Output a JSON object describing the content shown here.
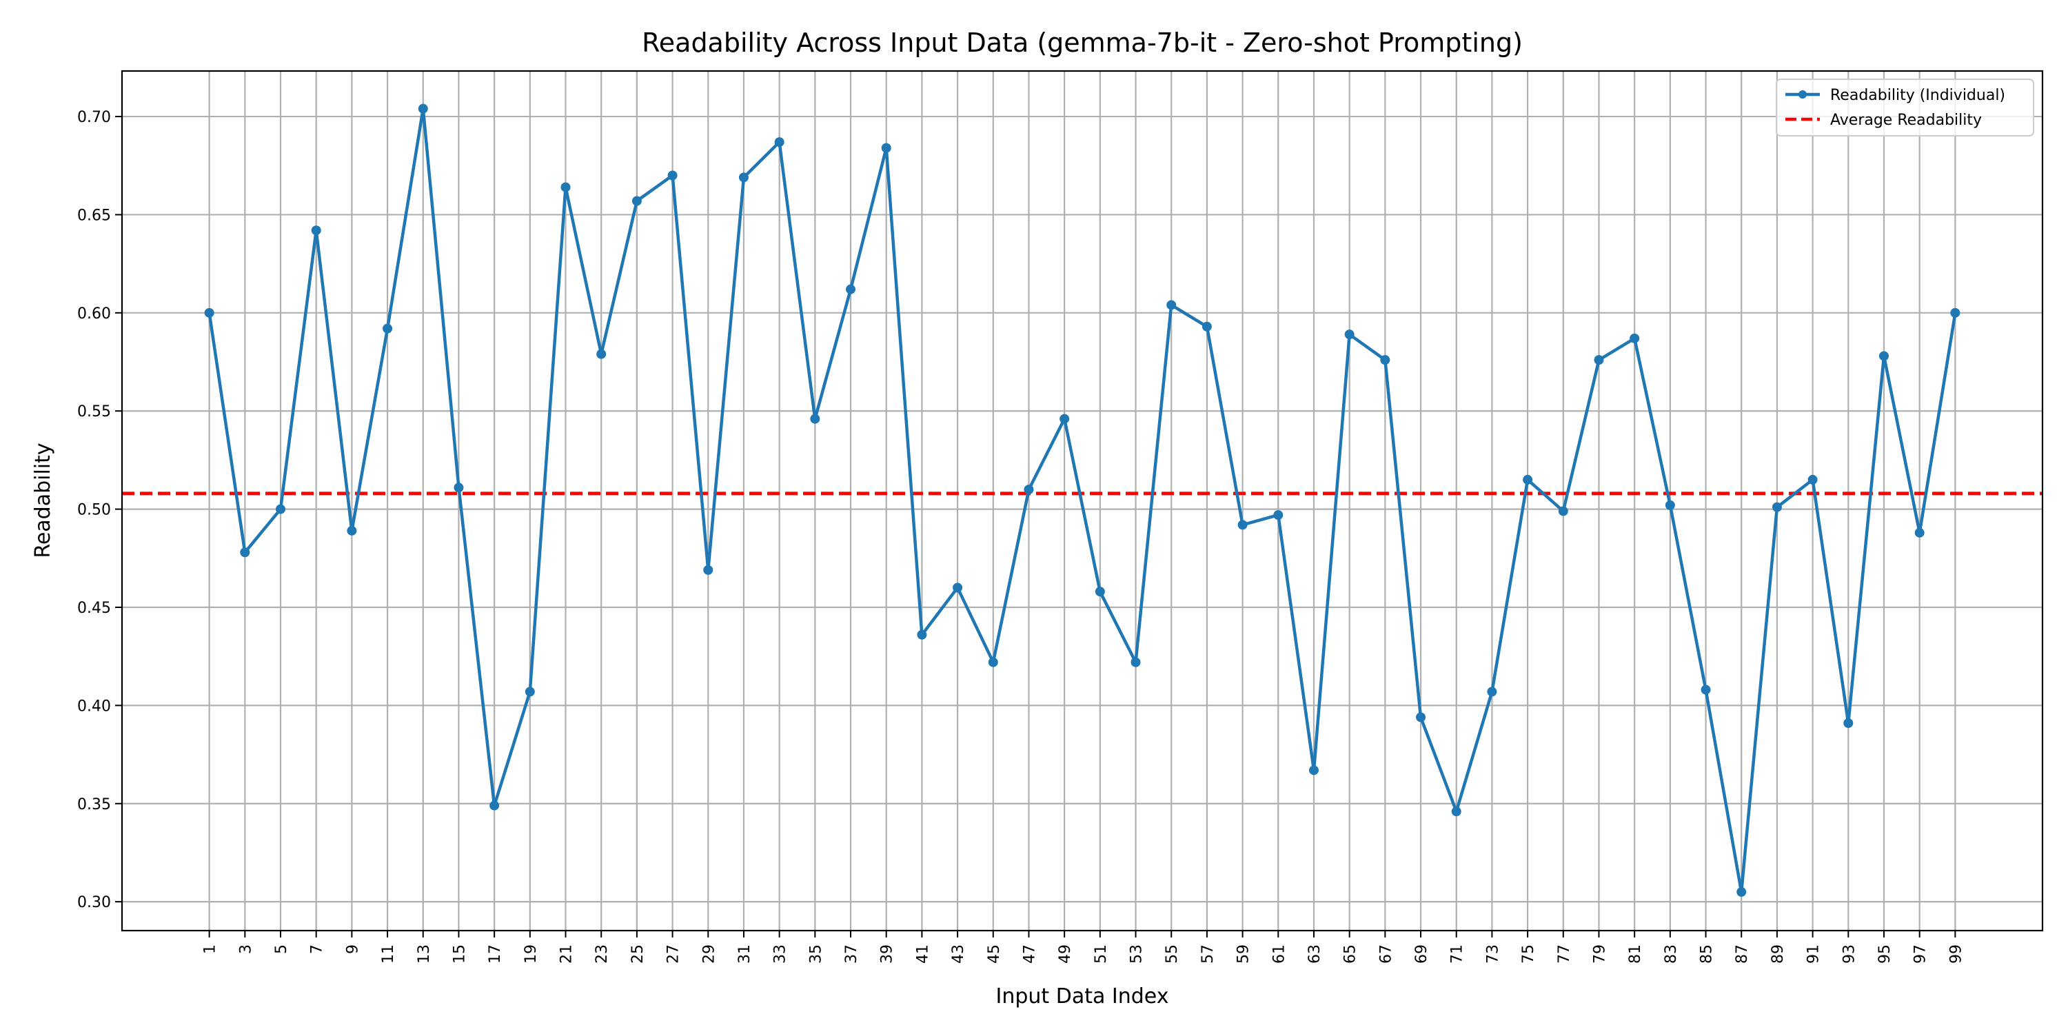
{
  "chart_data": {
    "type": "line",
    "title": "Readability Across Input Data (gemma-7b-it - Zero-shot Prompting)",
    "xlabel": "Input Data Index",
    "ylabel": "Readability",
    "x": [
      1,
      3,
      5,
      7,
      9,
      11,
      13,
      15,
      17,
      19,
      21,
      23,
      25,
      27,
      29,
      31,
      33,
      35,
      37,
      39,
      41,
      43,
      45,
      47,
      49,
      51,
      53,
      55,
      57,
      59,
      61,
      63,
      65,
      67,
      69,
      71,
      73,
      75,
      77,
      79,
      81,
      83,
      85,
      87,
      89,
      91,
      93,
      95,
      97,
      99
    ],
    "x_tick_labels": [
      "1",
      "3",
      "5",
      "7",
      "9",
      "11",
      "13",
      "15",
      "17",
      "19",
      "21",
      "23",
      "25",
      "27",
      "29",
      "31",
      "33",
      "35",
      "37",
      "39",
      "41",
      "43",
      "45",
      "47",
      "49",
      "51",
      "53",
      "55",
      "57",
      "59",
      "61",
      "63",
      "65",
      "67",
      "69",
      "71",
      "73",
      "75",
      "77",
      "79",
      "81",
      "83",
      "85",
      "87",
      "89",
      "91",
      "93",
      "95",
      "97",
      "99"
    ],
    "series": [
      {
        "name": "Readability (Individual)",
        "color": "#1f77b4",
        "style": "solid-line-with-markers",
        "values": [
          0.6,
          0.478,
          0.5,
          0.642,
          0.489,
          0.592,
          0.704,
          0.511,
          0.349,
          0.407,
          0.664,
          0.579,
          0.657,
          0.67,
          0.469,
          0.669,
          0.687,
          0.546,
          0.612,
          0.684,
          0.436,
          0.46,
          0.422,
          0.51,
          0.546,
          0.458,
          0.422,
          0.604,
          0.593,
          0.492,
          0.497,
          0.367,
          0.589,
          0.576,
          0.394,
          0.346,
          0.407,
          0.515,
          0.499,
          0.576,
          0.587,
          0.502,
          0.408,
          0.305,
          0.501,
          0.515,
          0.391,
          0.578,
          0.488,
          0.6
        ]
      },
      {
        "name": "Average Readability",
        "color": "#ff0000",
        "style": "dashed-horizontal-line",
        "value": 0.508
      }
    ],
    "xlim": [
      -3.9,
      103.9
    ],
    "ylim": [
      0.2853,
      0.7232
    ],
    "y_ticks": [
      0.3,
      0.35,
      0.4,
      0.45,
      0.5,
      0.55,
      0.6,
      0.65,
      0.7
    ],
    "y_tick_labels": [
      "0.30",
      "0.35",
      "0.40",
      "0.45",
      "0.50",
      "0.55",
      "0.60",
      "0.65",
      "0.70"
    ],
    "grid": true,
    "legend_position": "top-right",
    "colors": {
      "grid": "#b0b0b0",
      "axis": "#000000"
    }
  }
}
